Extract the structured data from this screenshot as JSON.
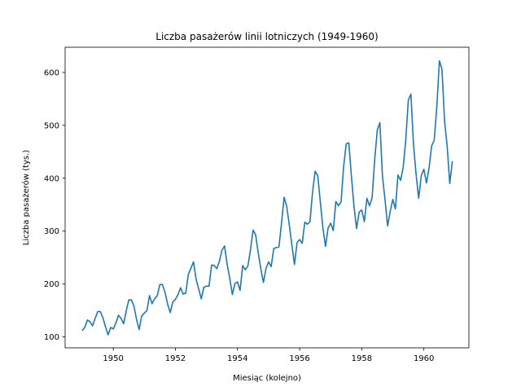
{
  "chart_data": {
    "type": "line",
    "title": "Liczba pasażerów linii lotniczych (1949-1960)",
    "xlabel": "Miesiąc (kolejno)",
    "ylabel": "Liczba pasażerów (tys.)",
    "xlim": [
      1948.45,
      1961.45
    ],
    "ylim": [
      79.4,
      647.6
    ],
    "x_ticks": [
      1950,
      1952,
      1954,
      1956,
      1958,
      1960
    ],
    "y_ticks": [
      100,
      200,
      300,
      400,
      500,
      600
    ],
    "grid": false,
    "legend": "none",
    "colors": {
      "line": "#1f77b4"
    },
    "series": [
      {
        "x_start": 1949.0,
        "x_step": 0.0833333,
        "values": [
          112,
          118,
          132,
          129,
          121,
          135,
          148,
          148,
          136,
          119,
          104,
          118,
          115,
          126,
          141,
          135,
          125,
          149,
          170,
          170,
          158,
          133,
          114,
          140,
          145,
          150,
          178,
          163,
          172,
          178,
          199,
          199,
          184,
          162,
          146,
          166,
          171,
          180,
          193,
          181,
          183,
          218,
          230,
          242,
          209,
          191,
          172,
          194,
          196,
          196,
          236,
          235,
          229,
          243,
          264,
          272,
          237,
          211,
          180,
          201,
          204,
          188,
          235,
          227,
          234,
          264,
          302,
          293,
          259,
          229,
          203,
          229,
          242,
          233,
          267,
          269,
          270,
          315,
          364,
          347,
          312,
          274,
          237,
          278,
          284,
          277,
          317,
          313,
          318,
          374,
          413,
          405,
          355,
          306,
          271,
          306,
          315,
          301,
          356,
          348,
          355,
          422,
          465,
          467,
          404,
          347,
          305,
          336,
          340,
          318,
          362,
          348,
          363,
          435,
          491,
          505,
          404,
          359,
          310,
          337,
          360,
          342,
          406,
          396,
          420,
          472,
          548,
          559,
          463,
          407,
          362,
          405,
          417,
          391,
          419,
          461,
          472,
          535,
          622,
          606,
          508,
          461,
          390,
          432
        ]
      }
    ]
  }
}
